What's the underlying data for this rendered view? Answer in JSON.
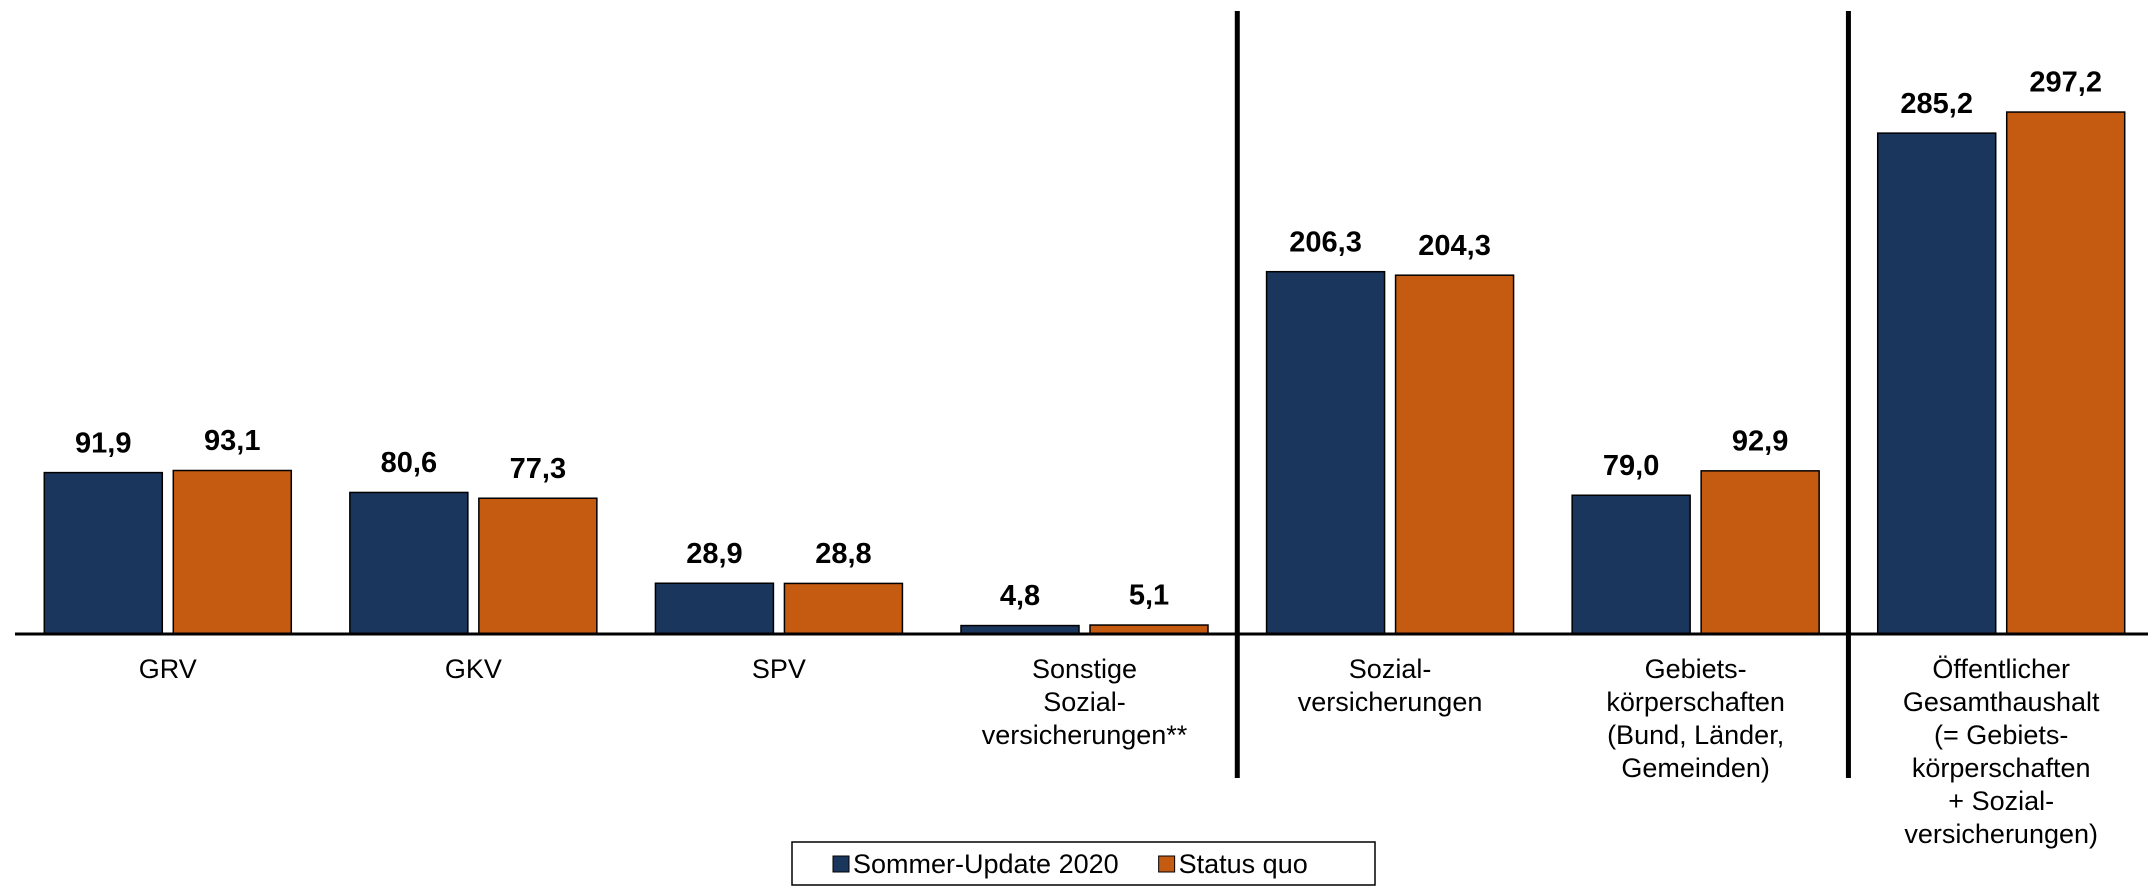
{
  "chart_data": {
    "type": "bar",
    "categories": [
      [
        "GRV"
      ],
      [
        "GKV"
      ],
      [
        "SPV"
      ],
      [
        "Sonstige",
        "Sozial-",
        "versicherungen**"
      ],
      [
        "Sozial-",
        "versicherungen"
      ],
      [
        "Gebiets-",
        "körperschaften",
        "(Bund, Länder,",
        "Gemeinden)"
      ],
      [
        "Öffentlicher",
        "Gesamthaushalt",
        "(= Gebiets-",
        "körperschaften",
        "+ Sozial-",
        "versicherungen)"
      ]
    ],
    "series": [
      {
        "name": "Sommer-Update 2020",
        "color": "#1b365d",
        "values": [
          91.9,
          80.6,
          28.9,
          4.8,
          206.3,
          79.0,
          285.2
        ],
        "value_labels": [
          "91,9",
          "80,6",
          "28,9",
          "4,8",
          "206,3",
          "79,0",
          "285,2"
        ]
      },
      {
        "name": "Status quo",
        "color": "#c55a11",
        "values": [
          93.1,
          77.3,
          28.8,
          5.1,
          204.3,
          92.9,
          297.2
        ],
        "value_labels": [
          "93,1",
          "77,3",
          "28,8",
          "5,1",
          "204,3",
          "92,9",
          "297,2"
        ]
      }
    ],
    "ylim": [
      0,
      361
    ]
  }
}
